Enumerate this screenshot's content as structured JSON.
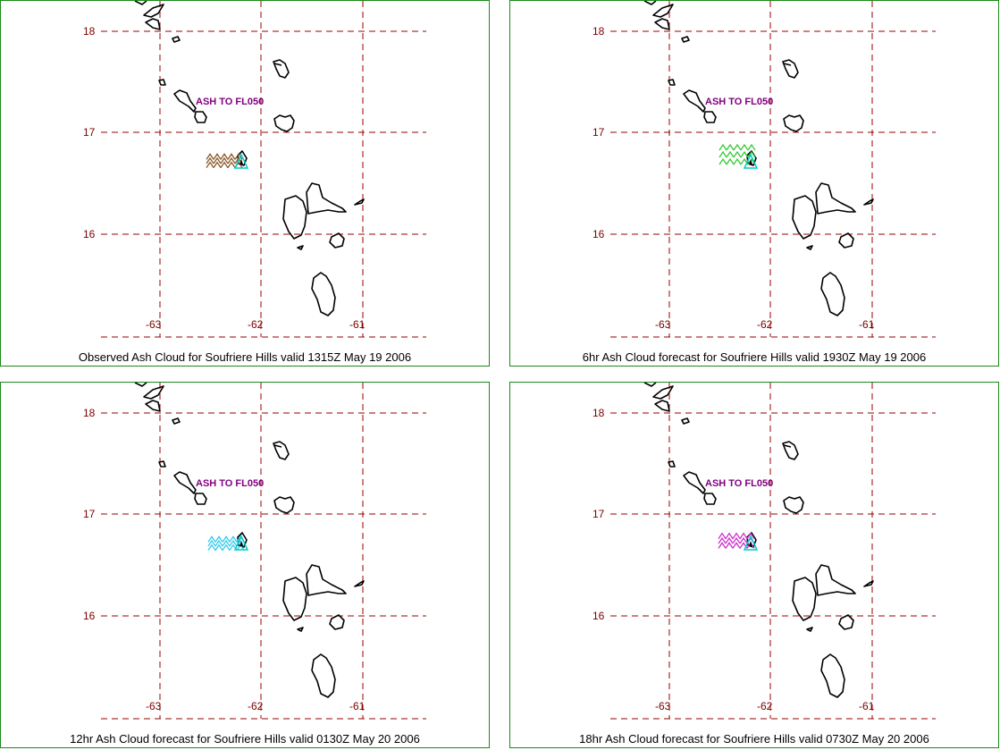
{
  "panels": [
    {
      "caption": "Observed Ash Cloud for Soufriere  Hills valid 1315Z May 19 2006",
      "altitude_label": "ASH TO FL050",
      "ash_color": "#8b5a2b",
      "lat_labels": [
        "18",
        "17",
        "16"
      ],
      "lon_labels": [
        "-63",
        "-62",
        "-61"
      ]
    },
    {
      "caption": "6hr Ash Cloud forecast for Soufriere  Hills valid 1930Z May 19 2006",
      "altitude_label": "ASH TO FL050",
      "ash_color": "#33cc33",
      "lat_labels": [
        "18",
        "17",
        "16"
      ],
      "lon_labels": [
        "-63",
        "-62",
        "-61"
      ]
    },
    {
      "caption": "12hr Ash Cloud forecast for Soufriere  Hills valid 0130Z May 20 2006",
      "altitude_label": "ASH TO FL050",
      "ash_color": "#33ccee",
      "lat_labels": [
        "18",
        "17",
        "16"
      ],
      "lon_labels": [
        "-63",
        "-62",
        "-61"
      ]
    },
    {
      "caption": "18hr Ash Cloud forecast for Soufriere  Hills valid 0730Z May 20 2006",
      "altitude_label": "ASH TO FL050",
      "ash_color": "#cc33cc",
      "lat_labels": [
        "18",
        "17",
        "16"
      ],
      "lon_labels": [
        "-63",
        "-62",
        "-61"
      ]
    }
  ],
  "volcano_marker_color": "#00cccc",
  "grid_color": "#9a0000",
  "altitude_label_color": "#800080"
}
